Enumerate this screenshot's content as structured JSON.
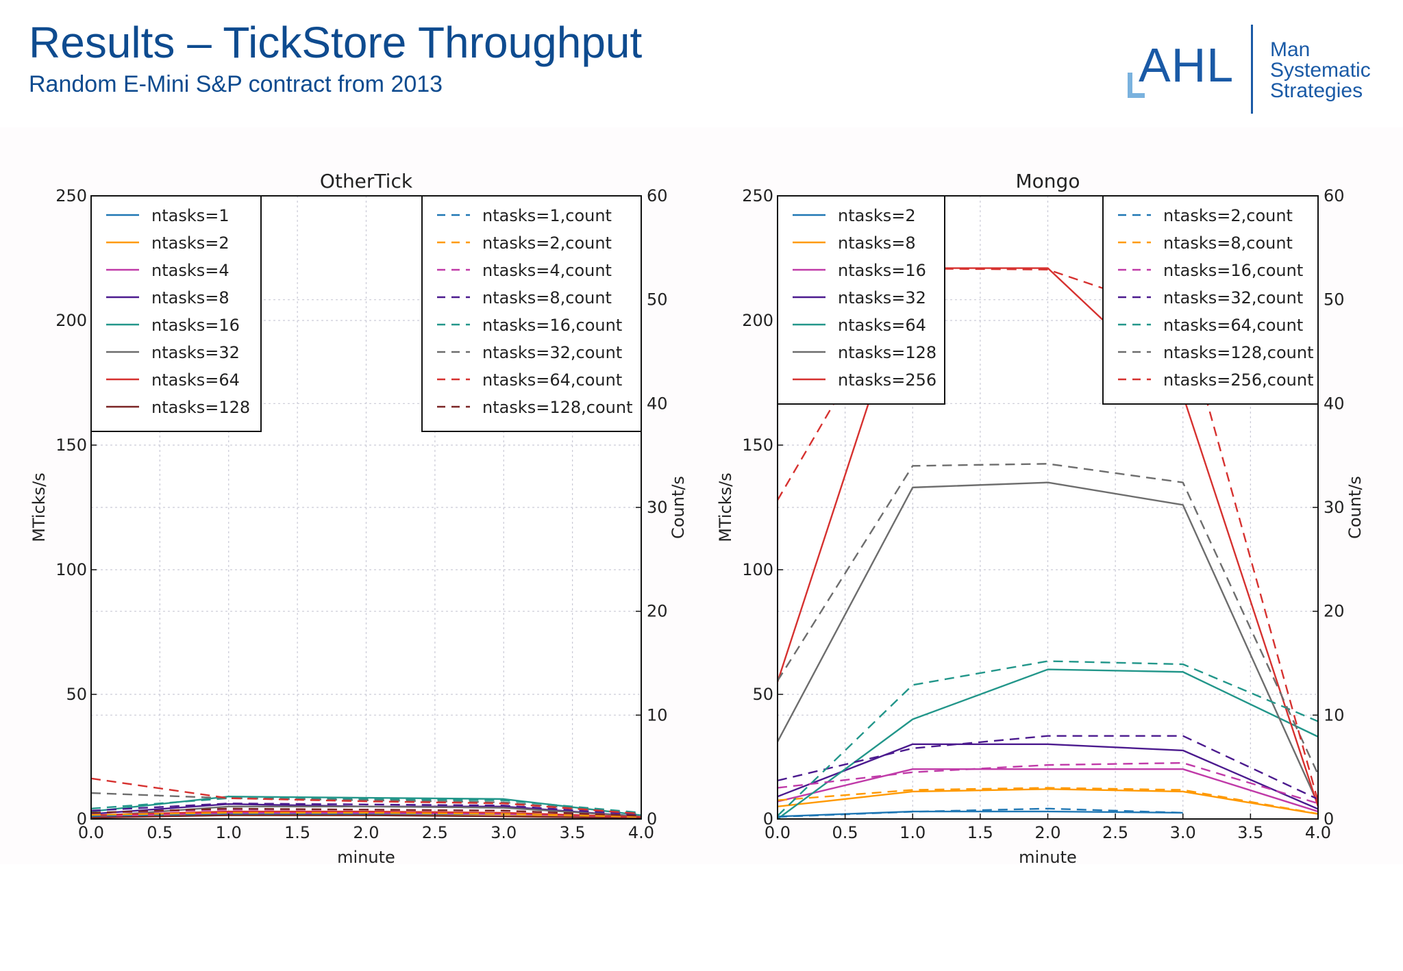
{
  "header": {
    "title": "Results – TickStore Throughput",
    "subtitle": "Random E-Mini S&P contract from 2013"
  },
  "logo": {
    "brand": "AHL",
    "lines": [
      "Man",
      "Systematic",
      "Strategies"
    ],
    "color": "#1a5aa6"
  },
  "chart_data": [
    {
      "type": "line",
      "title": "OtherTick",
      "xlabel": "minute",
      "ylabel": "MTicks/s",
      "y2label": "Count/s",
      "xlim": [
        0,
        4
      ],
      "ylim": [
        0,
        250
      ],
      "y2lim": [
        0,
        60
      ],
      "xticks": [
        "0.0",
        "0.5",
        "1.0",
        "1.5",
        "2.0",
        "2.5",
        "3.0",
        "3.5",
        "4.0"
      ],
      "yticks": [
        "0",
        "50",
        "100",
        "150",
        "200",
        "250"
      ],
      "y2ticks": [
        "0",
        "10",
        "20",
        "30",
        "40",
        "50",
        "60"
      ],
      "grid": true,
      "legend_left": "top-left",
      "legend_right": "top-right",
      "x": [
        0,
        1,
        2,
        3,
        4
      ],
      "series": [
        {
          "name": "ntasks=1",
          "color": "#1f77b4",
          "style": "solid",
          "values": [
            0.5,
            2,
            2,
            2,
            0.5
          ]
        },
        {
          "name": "ntasks=2",
          "color": "#ff9900",
          "style": "solid",
          "values": [
            0.8,
            1.5,
            1.5,
            1.2,
            0.5
          ]
        },
        {
          "name": "ntasks=4",
          "color": "#c03aa8",
          "style": "solid",
          "values": [
            1,
            2.5,
            2.5,
            2,
            0.8
          ]
        },
        {
          "name": "ntasks=8",
          "color": "#4b1a8e",
          "style": "solid",
          "values": [
            2,
            6,
            5,
            5,
            1
          ]
        },
        {
          "name": "ntasks=16",
          "color": "#22968a",
          "style": "solid",
          "values": [
            3,
            9,
            8.5,
            8,
            1.5
          ]
        },
        {
          "name": "ntasks=32",
          "color": "#6d6d6d",
          "style": "solid",
          "values": [
            1,
            5,
            5,
            4.5,
            1
          ]
        },
        {
          "name": "ntasks=64",
          "color": "#d6312f",
          "style": "solid",
          "values": [
            1.5,
            3,
            3,
            2.5,
            0.8
          ]
        },
        {
          "name": "ntasks=128",
          "color": "#7a2424",
          "style": "solid",
          "values": [
            0.5,
            1.5,
            1.5,
            1,
            0.3
          ]
        }
      ],
      "count_series": [
        {
          "name": "ntasks=1,count",
          "color": "#1f77b4",
          "style": "dashed",
          "values": [
            0.3,
            0.5,
            0.5,
            0.5,
            0.2
          ]
        },
        {
          "name": "ntasks=2,count",
          "color": "#ff9900",
          "style": "dashed",
          "values": [
            0.4,
            0.6,
            0.6,
            0.5,
            0.2
          ]
        },
        {
          "name": "ntasks=4,count",
          "color": "#c03aa8",
          "style": "dashed",
          "values": [
            0.6,
            0.9,
            0.9,
            0.8,
            0.3
          ]
        },
        {
          "name": "ntasks=8,count",
          "color": "#4b1a8e",
          "style": "dashed",
          "values": [
            0.8,
            1.5,
            1.4,
            1.3,
            0.4
          ]
        },
        {
          "name": "ntasks=16,count",
          "color": "#22968a",
          "style": "dashed",
          "values": [
            1,
            2,
            1.9,
            1.8,
            0.6
          ]
        },
        {
          "name": "ntasks=32,count",
          "color": "#6d6d6d",
          "style": "dashed",
          "values": [
            2.5,
            2,
            1.8,
            1.6,
            0.5
          ]
        },
        {
          "name": "ntasks=64,count",
          "color": "#d6312f",
          "style": "dashed",
          "values": [
            3.9,
            2,
            1.7,
            1.5,
            0.5
          ]
        },
        {
          "name": "ntasks=128,count",
          "color": "#7a2424",
          "style": "dashed",
          "values": [
            0.6,
            1,
            0.9,
            0.8,
            0.3
          ]
        }
      ]
    },
    {
      "type": "line",
      "title": "Mongo",
      "xlabel": "minute",
      "ylabel": "MTicks/s",
      "y2label": "Count/s",
      "xlim": [
        0,
        4
      ],
      "ylim": [
        0,
        250
      ],
      "y2lim": [
        0,
        60
      ],
      "xticks": [
        "0.0",
        "0.5",
        "1.0",
        "1.5",
        "2.0",
        "2.5",
        "3.0",
        "3.5",
        "4.0"
      ],
      "yticks": [
        "0",
        "50",
        "100",
        "150",
        "200",
        "250"
      ],
      "y2ticks": [
        "0",
        "10",
        "20",
        "30",
        "40",
        "50",
        "60"
      ],
      "grid": true,
      "legend_left": "top-left",
      "legend_right": "top-right",
      "x": [
        0,
        1,
        2,
        3,
        4
      ],
      "series": [
        {
          "name": "ntasks=2",
          "color": "#1f77b4",
          "style": "solid",
          "x": [
            0,
            1,
            2,
            3
          ],
          "values": [
            1,
            3,
            3,
            2.5
          ]
        },
        {
          "name": "ntasks=8",
          "color": "#ff9900",
          "style": "solid",
          "values": [
            5,
            11,
            12,
            11,
            2
          ]
        },
        {
          "name": "ntasks=16",
          "color": "#c03aa8",
          "style": "solid",
          "values": [
            7,
            20,
            20,
            20,
            3
          ]
        },
        {
          "name": "ntasks=32",
          "color": "#4b1a8e",
          "style": "solid",
          "values": [
            9,
            30,
            30,
            27.5,
            4
          ]
        },
        {
          "name": "ntasks=64",
          "color": "#22968a",
          "style": "solid",
          "values": [
            0,
            40,
            60,
            59,
            33
          ]
        },
        {
          "name": "ntasks=128",
          "color": "#6d6d6d",
          "style": "solid",
          "values": [
            31,
            133,
            135,
            126,
            6
          ]
        },
        {
          "name": "ntasks=256",
          "color": "#d6312f",
          "style": "solid",
          "values": [
            55,
            221,
            221,
            170,
            5
          ]
        }
      ],
      "count_series": [
        {
          "name": "ntasks=2,count",
          "color": "#1f77b4",
          "style": "dashed",
          "x": [
            0,
            1,
            2,
            3
          ],
          "values": [
            0.2,
            0.7,
            1,
            0.6
          ]
        },
        {
          "name": "ntasks=8,count",
          "color": "#ff9900",
          "style": "dashed",
          "values": [
            1.8,
            2.8,
            3,
            2.8,
            0.5
          ]
        },
        {
          "name": "ntasks=16,count",
          "color": "#c03aa8",
          "style": "dashed",
          "values": [
            3,
            4.5,
            5.2,
            5.4,
            1.5
          ]
        },
        {
          "name": "ntasks=32,count",
          "color": "#4b1a8e",
          "style": "dashed",
          "values": [
            3.7,
            6.8,
            8,
            8,
            1.9
          ]
        },
        {
          "name": "ntasks=64,count",
          "color": "#22968a",
          "style": "dashed",
          "values": [
            0.3,
            12.9,
            15.2,
            14.9,
            9.4
          ]
        },
        {
          "name": "ntasks=128,count",
          "color": "#6d6d6d",
          "style": "dashed",
          "values": [
            13.3,
            34,
            34.2,
            32.4,
            4.3
          ]
        },
        {
          "name": "ntasks=256,count",
          "color": "#d6312f",
          "style": "dashed",
          "values": [
            30.7,
            53,
            52.9,
            48.5,
            1.7
          ]
        }
      ]
    }
  ]
}
